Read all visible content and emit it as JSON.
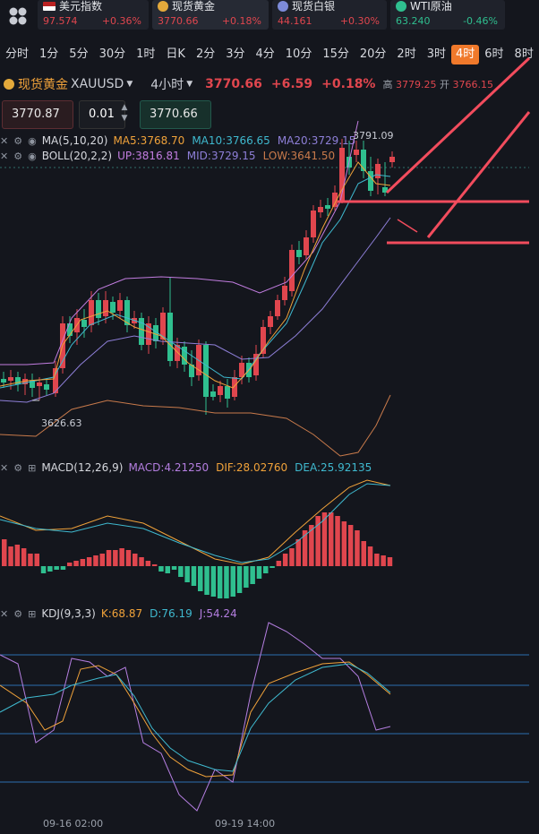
{
  "tickers": [
    {
      "name": "美元指数",
      "price": "97.574",
      "chg": "+0.36%",
      "icon": "us-flag-icon",
      "down": false
    },
    {
      "name": "现货黄金",
      "price": "3770.66",
      "chg": "+0.18%",
      "icon": "gold-coin-icon",
      "down": false
    },
    {
      "name": "现货白银",
      "price": "44.161",
      "chg": "+0.30%",
      "icon": "silver-coin-icon",
      "down": false
    },
    {
      "name": "WTI原油",
      "price": "63.240",
      "chg": "-0.46%",
      "icon": "oil-icon",
      "down": true
    }
  ],
  "timeframes": [
    "分时",
    "1分",
    "5分",
    "30分",
    "1时",
    "日K",
    "2分",
    "3分",
    "4分",
    "10分",
    "15分",
    "20分",
    "2时",
    "3时",
    "4时",
    "6时",
    "8时"
  ],
  "active_timeframe": "4时",
  "symbol": {
    "name": "现货黄金",
    "code": "XAUUSD",
    "period": "4小时",
    "last": "3770.66",
    "change": "+6.59",
    "pct": "+0.18%",
    "high_label": "高",
    "high": "3779.25",
    "open_label": "开",
    "open": "3766.15"
  },
  "order": {
    "sell": "3770.87",
    "qty": "0.01",
    "buy": "3770.66"
  },
  "ma": {
    "label": "MA(5,10,20)",
    "ma5": "MA5:3768.70",
    "ma10": "MA10:3766.65",
    "ma20": "MA20:3729.15"
  },
  "boll": {
    "label": "BOLL(20,2,2)",
    "up": "UP:3816.81",
    "mid": "MID:3729.15",
    "low": "LOW:3641.50"
  },
  "price_labels": {
    "hi": "3791.09",
    "lo": "3626.63"
  },
  "macd": {
    "label": "MACD(12,26,9)",
    "macd": "MACD:4.21250",
    "dif": "DIF:28.02760",
    "dea": "DEA:25.92135"
  },
  "kdj": {
    "label": "KDJ(9,3,3)",
    "k": "K:68.87",
    "d": "D:76.19",
    "j": "J:54.24"
  },
  "dates": [
    "09-16 02:00",
    "09-19 14:00"
  ],
  "colors": {
    "up": "#e0464e",
    "down": "#2fbf8f",
    "accent": "#f0792b"
  }
}
